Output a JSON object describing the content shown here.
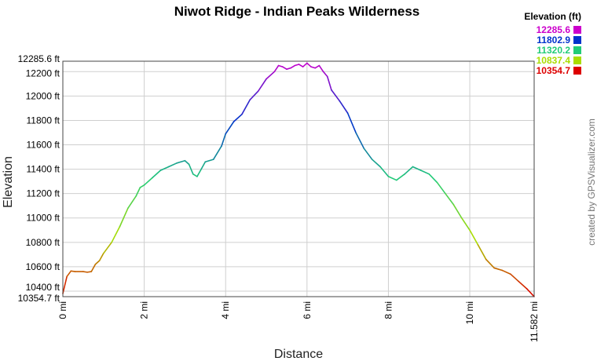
{
  "chart_data": {
    "type": "line",
    "title": "Niwot Ridge - Indian Peaks Wilderness",
    "xlabel": "Distance",
    "ylabel": "Elevation",
    "xlim": [
      0,
      11.582
    ],
    "ylim": [
      10354.7,
      12285.6
    ],
    "x_ticks": [
      {
        "value": 0,
        "label": "0 mi"
      },
      {
        "value": 2,
        "label": "2 mi"
      },
      {
        "value": 4,
        "label": "4 mi"
      },
      {
        "value": 6,
        "label": "6 mi"
      },
      {
        "value": 8,
        "label": "8 mi"
      },
      {
        "value": 10,
        "label": "10 mi"
      },
      {
        "value": 11.582,
        "label": "11.582 mi"
      }
    ],
    "y_ticks": [
      {
        "value": 10354.7,
        "label": "10354.7 ft"
      },
      {
        "value": 10400,
        "label": "10400 ft"
      },
      {
        "value": 10600,
        "label": "10600 ft"
      },
      {
        "value": 10800,
        "label": "10800 ft"
      },
      {
        "value": 11000,
        "label": "11000 ft"
      },
      {
        "value": 11200,
        "label": "11200 ft"
      },
      {
        "value": 11400,
        "label": "11400 ft"
      },
      {
        "value": 11600,
        "label": "11600 ft"
      },
      {
        "value": 11800,
        "label": "11800 ft"
      },
      {
        "value": 12000,
        "label": "12000 ft"
      },
      {
        "value": 12200,
        "label": "12200 ft"
      },
      {
        "value": 12285.6,
        "label": "12285.6 ft"
      }
    ],
    "grid": true,
    "legend": {
      "title": "Elevation (ft)",
      "placement": "top-right",
      "entries": [
        {
          "label": "12285.6",
          "color": "#cc00cc"
        },
        {
          "label": "11802.9",
          "color": "#0033cc"
        },
        {
          "label": "11320.2",
          "color": "#22cc77"
        },
        {
          "label": "10837.4",
          "color": "#aadd00"
        },
        {
          "label": "10354.7",
          "color": "#dd0000"
        }
      ]
    },
    "series": [
      {
        "x": [
          0,
          0.1,
          0.2,
          0.3,
          0.5,
          0.6,
          0.7,
          0.8,
          0.9,
          1.0,
          1.2,
          1.4,
          1.6,
          1.8,
          1.9,
          2.0,
          2.2,
          2.4,
          2.6,
          2.8,
          2.9,
          3.0,
          3.1,
          3.2,
          3.3,
          3.4,
          3.5,
          3.7,
          3.9,
          4.0,
          4.2,
          4.4,
          4.6,
          4.8,
          5.0,
          5.2,
          5.3,
          5.4,
          5.5,
          5.6,
          5.7,
          5.8,
          5.9,
          6.0,
          6.1,
          6.2,
          6.3,
          6.4,
          6.5,
          6.6,
          6.8,
          7.0,
          7.2,
          7.4,
          7.6,
          7.8,
          8.0,
          8.2,
          8.4,
          8.6,
          8.8,
          9.0,
          9.2,
          9.4,
          9.6,
          9.8,
          10.0,
          10.2,
          10.4,
          10.6,
          10.8,
          11.0,
          11.2,
          11.4,
          11.582
        ],
        "y": [
          10380,
          10520,
          10565,
          10560,
          10560,
          10555,
          10560,
          10620,
          10650,
          10710,
          10800,
          10930,
          11080,
          11180,
          11250,
          11270,
          11330,
          11390,
          11420,
          11450,
          11460,
          11470,
          11440,
          11360,
          11340,
          11400,
          11460,
          11480,
          11590,
          11690,
          11790,
          11850,
          11970,
          12040,
          12140,
          12200,
          12250,
          12240,
          12220,
          12230,
          12250,
          12260,
          12240,
          12270,
          12240,
          12230,
          12250,
          12200,
          12160,
          12050,
          11960,
          11860,
          11700,
          11570,
          11480,
          11420,
          11340,
          11310,
          11360,
          11420,
          11390,
          11360,
          11290,
          11200,
          11110,
          11000,
          10900,
          10780,
          10660,
          10590,
          10570,
          10540,
          10480,
          10420,
          10355
        ]
      }
    ],
    "credit": "created by GPSVisualizer.com"
  }
}
